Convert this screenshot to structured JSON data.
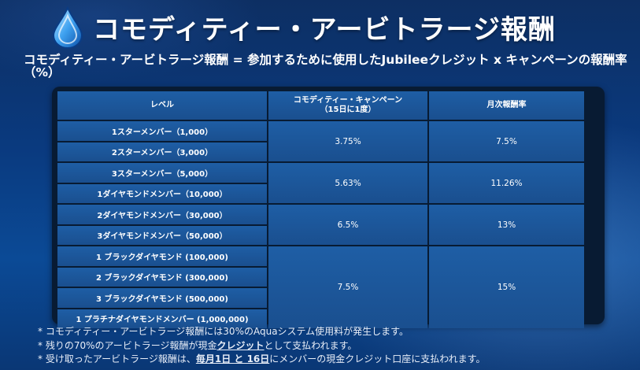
{
  "header": {
    "title": "コモディティー・アービトラージ報酬",
    "logo_icon": "water-drop-icon"
  },
  "formula_text": "コモディティー・アービトラージ報酬 = 参加するために使用したJubileeクレジット x キャンペーンの報酬率（%）",
  "table": {
    "headers": [
      "レベル",
      "コモディティー・キャンペーン\n（15日に1度）",
      "月次報酬率"
    ],
    "levels": [
      "1スターメンバー（1,000）",
      "2スターメンバー（3,000）",
      "3スターメンバー（5,000）",
      "1ダイヤモンドメンバー（10,000）",
      "2ダイヤモンドメンバー（30,000）",
      "3ダイヤモンドメンバー（50,000）",
      "1 ブラックダイヤモンド (100,000)",
      "2 ブラックダイヤモンド (300,000)",
      "3 ブラックダイヤモンド (500,000)",
      "1 プラチナダイヤモンドメンバー (1,000,000)"
    ],
    "groups": [
      {
        "campaign": "3.75%",
        "monthly": "7.5%"
      },
      {
        "campaign": "5.63%",
        "monthly": "11.26%"
      },
      {
        "campaign": "6.5%",
        "monthly": "13%"
      },
      {
        "campaign": "7.5%",
        "monthly": "15%"
      }
    ]
  },
  "notes": {
    "n1": "* コモディティー・アービトラージ報酬には30%のAquaシステム使用料が発生します。",
    "n2_pre": "* 残りの70%のアービトラージ報酬が現金",
    "n2_em": "クレジット",
    "n2_post": "として支払われます。",
    "n3_pre": "* 受け取ったアービトラージ報酬は、",
    "n3_em": "毎月1日 と 16日",
    "n3_post": "にメンバーの現金クレジット口座に支払われます。"
  },
  "colors": {
    "background": "#0b3f84",
    "cell": "#1e5ea5",
    "table_border": "#081b33"
  }
}
